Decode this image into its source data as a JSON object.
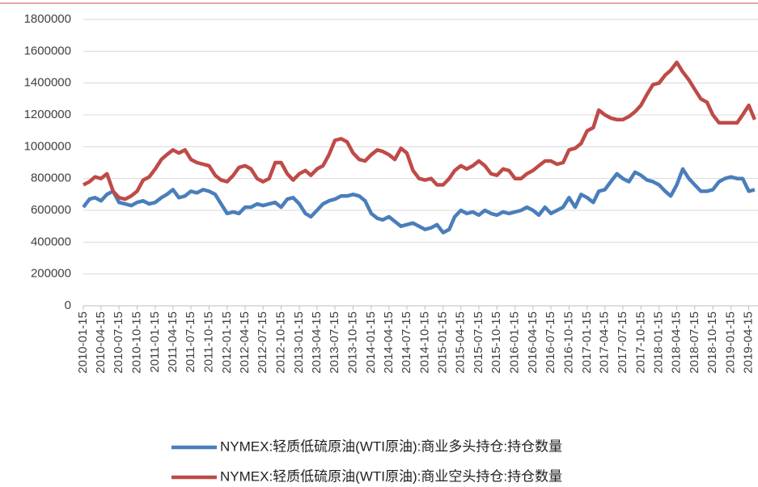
{
  "chart_data": {
    "type": "line",
    "x": [
      "2010-01-15",
      "2010-02-15",
      "2010-03-15",
      "2010-04-15",
      "2010-05-15",
      "2010-06-15",
      "2010-07-15",
      "2010-08-15",
      "2010-09-15",
      "2010-10-15",
      "2010-11-15",
      "2010-12-15",
      "2011-01-15",
      "2011-02-15",
      "2011-03-15",
      "2011-04-15",
      "2011-05-15",
      "2011-06-15",
      "2011-07-15",
      "2011-08-15",
      "2011-09-15",
      "2011-10-15",
      "2011-11-15",
      "2011-12-15",
      "2012-01-15",
      "2012-02-15",
      "2012-03-15",
      "2012-04-15",
      "2012-05-15",
      "2012-06-15",
      "2012-07-15",
      "2012-08-15",
      "2012-09-15",
      "2012-10-15",
      "2012-11-15",
      "2012-12-15",
      "2013-01-15",
      "2013-02-15",
      "2013-03-15",
      "2013-04-15",
      "2013-05-15",
      "2013-06-15",
      "2013-07-15",
      "2013-08-15",
      "2013-09-15",
      "2013-10-15",
      "2013-11-15",
      "2013-12-15",
      "2014-01-15",
      "2014-02-15",
      "2014-03-15",
      "2014-04-15",
      "2014-05-15",
      "2014-06-15",
      "2014-07-15",
      "2014-08-15",
      "2014-09-15",
      "2014-10-15",
      "2014-11-15",
      "2014-12-15",
      "2015-01-15",
      "2015-02-15",
      "2015-03-15",
      "2015-04-15",
      "2015-05-15",
      "2015-06-15",
      "2015-07-15",
      "2015-08-15",
      "2015-09-15",
      "2015-10-15",
      "2015-11-15",
      "2015-12-15",
      "2016-01-15",
      "2016-02-15",
      "2016-03-15",
      "2016-04-15",
      "2016-05-15",
      "2016-06-15",
      "2016-07-15",
      "2016-08-15",
      "2016-09-15",
      "2016-10-15",
      "2016-11-15",
      "2016-12-15",
      "2017-01-15",
      "2017-02-15",
      "2017-03-15",
      "2017-04-15",
      "2017-05-15",
      "2017-06-15",
      "2017-07-15",
      "2017-08-15",
      "2017-09-15",
      "2017-10-15",
      "2017-11-15",
      "2017-12-15",
      "2018-01-15",
      "2018-02-15",
      "2018-03-15",
      "2018-04-15",
      "2018-05-15",
      "2018-06-15",
      "2018-07-15",
      "2018-08-15",
      "2018-09-15",
      "2018-10-15",
      "2018-11-15",
      "2018-12-15",
      "2019-01-15",
      "2019-02-15",
      "2019-03-15",
      "2019-04-15",
      "2019-05-15"
    ],
    "series": [
      {
        "name": "NYMEX:轻质低硫原油(WTI原油):商业多头持仓:持仓数量",
        "color": "#4a7ebb",
        "values": [
          620000,
          670000,
          680000,
          660000,
          700000,
          720000,
          650000,
          640000,
          630000,
          650000,
          660000,
          640000,
          650000,
          680000,
          700000,
          730000,
          680000,
          690000,
          720000,
          710000,
          730000,
          720000,
          700000,
          640000,
          580000,
          590000,
          580000,
          620000,
          620000,
          640000,
          630000,
          640000,
          650000,
          620000,
          670000,
          680000,
          640000,
          580000,
          560000,
          600000,
          640000,
          660000,
          670000,
          690000,
          690000,
          700000,
          690000,
          660000,
          580000,
          550000,
          540000,
          560000,
          530000,
          500000,
          510000,
          520000,
          500000,
          480000,
          490000,
          510000,
          460000,
          480000,
          560000,
          600000,
          580000,
          590000,
          570000,
          600000,
          580000,
          570000,
          590000,
          580000,
          590000,
          600000,
          620000,
          600000,
          570000,
          620000,
          580000,
          600000,
          620000,
          680000,
          620000,
          700000,
          680000,
          650000,
          720000,
          730000,
          780000,
          830000,
          800000,
          780000,
          840000,
          820000,
          790000,
          780000,
          760000,
          720000,
          690000,
          760000,
          860000,
          800000,
          760000,
          720000,
          720000,
          730000,
          780000,
          800000,
          810000,
          800000,
          800000,
          720000,
          730000
        ]
      },
      {
        "name": "NYMEX:轻质低硫原油(WTI原油):商业空头持仓:持仓数量",
        "color": "#be4b48",
        "values": [
          760000,
          780000,
          810000,
          800000,
          830000,
          720000,
          680000,
          670000,
          690000,
          720000,
          790000,
          810000,
          860000,
          920000,
          950000,
          980000,
          960000,
          980000,
          920000,
          900000,
          890000,
          880000,
          820000,
          790000,
          780000,
          820000,
          870000,
          880000,
          860000,
          800000,
          780000,
          800000,
          900000,
          900000,
          830000,
          790000,
          830000,
          850000,
          820000,
          860000,
          880000,
          950000,
          1040000,
          1050000,
          1030000,
          960000,
          920000,
          910000,
          950000,
          980000,
          970000,
          950000,
          920000,
          990000,
          960000,
          850000,
          800000,
          790000,
          800000,
          760000,
          760000,
          800000,
          850000,
          880000,
          860000,
          880000,
          910000,
          880000,
          830000,
          820000,
          860000,
          850000,
          800000,
          800000,
          830000,
          850000,
          880000,
          910000,
          910000,
          890000,
          900000,
          980000,
          990000,
          1020000,
          1100000,
          1120000,
          1230000,
          1200000,
          1180000,
          1170000,
          1170000,
          1190000,
          1220000,
          1260000,
          1330000,
          1390000,
          1400000,
          1450000,
          1480000,
          1530000,
          1470000,
          1420000,
          1360000,
          1300000,
          1280000,
          1200000,
          1150000,
          1150000,
          1150000,
          1150000,
          1200000,
          1260000,
          1170000
        ]
      }
    ],
    "xlim": [
      "2010-01-15",
      "2019-06-01"
    ],
    "xticks": [
      "2010-01-15",
      "2010-04-15",
      "2010-07-15",
      "2010-10-15",
      "2011-01-15",
      "2011-04-15",
      "2011-07-15",
      "2011-10-15",
      "2012-01-15",
      "2012-04-15",
      "2012-07-15",
      "2012-10-15",
      "2013-01-15",
      "2013-04-15",
      "2013-07-15",
      "2013-10-15",
      "2014-01-15",
      "2014-04-15",
      "2014-07-15",
      "2014-10-15",
      "2015-01-15",
      "2015-04-15",
      "2015-07-15",
      "2015-10-15",
      "2016-01-15",
      "2016-04-15",
      "2016-07-15",
      "2016-10-15",
      "2017-01-15",
      "2017-04-15",
      "2017-07-15",
      "2017-10-15",
      "2018-01-15",
      "2018-04-15",
      "2018-07-15",
      "2018-10-15",
      "2019-01-15",
      "2019-04-15"
    ],
    "ylim": [
      0,
      1800000
    ],
    "yticks": [
      0,
      200000,
      400000,
      600000,
      800000,
      1000000,
      1200000,
      1400000,
      1600000,
      1800000
    ],
    "grid": true,
    "legend": "bottom"
  }
}
